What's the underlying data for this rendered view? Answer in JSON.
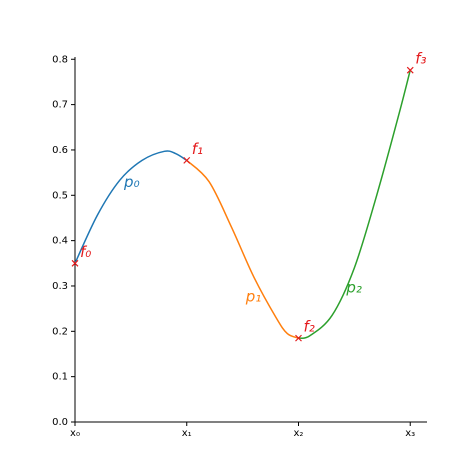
{
  "chart_data": {
    "type": "line",
    "xlim": [
      0,
      3.15
    ],
    "ylim": [
      0,
      0.805
    ],
    "xticks": [
      {
        "value": 0,
        "label": "x₀"
      },
      {
        "value": 1,
        "label": "x₁"
      },
      {
        "value": 2,
        "label": "x₂"
      },
      {
        "value": 3,
        "label": "x₃"
      }
    ],
    "yticks": [
      {
        "value": 0,
        "label": "0.0"
      },
      0.1,
      0.2,
      0.3,
      0.4,
      0.5,
      0.6,
      0.7,
      0.8
    ],
    "grid": false,
    "series": [
      {
        "name": "p₀",
        "color": "#1f77b4",
        "x": [
          0,
          0.2,
          0.4,
          0.6,
          0.8,
          0.9,
          1.0
        ],
        "values": [
          0.35,
          0.456,
          0.533,
          0.577,
          0.597,
          0.592,
          0.577
        ]
      },
      {
        "name": "p₁",
        "color": "#ff7f0e",
        "x": [
          1.0,
          1.2,
          1.4,
          1.6,
          1.8,
          1.9,
          2.0
        ],
        "values": [
          0.577,
          0.53,
          0.43,
          0.32,
          0.23,
          0.195,
          0.185
        ]
      },
      {
        "name": "p₂",
        "color": "#2ca02c",
        "x": [
          2.0,
          2.1,
          2.3,
          2.5,
          2.7,
          2.9,
          3.0
        ],
        "values": [
          0.185,
          0.19,
          0.235,
          0.34,
          0.5,
          0.68,
          0.776
        ]
      }
    ],
    "points": {
      "color": "#e41a1c",
      "labels": [
        "f₀",
        "f₁",
        "f₂",
        "f₃"
      ],
      "x": [
        0,
        1,
        2,
        3
      ],
      "values": [
        0.35,
        0.577,
        0.185,
        0.776
      ]
    }
  }
}
